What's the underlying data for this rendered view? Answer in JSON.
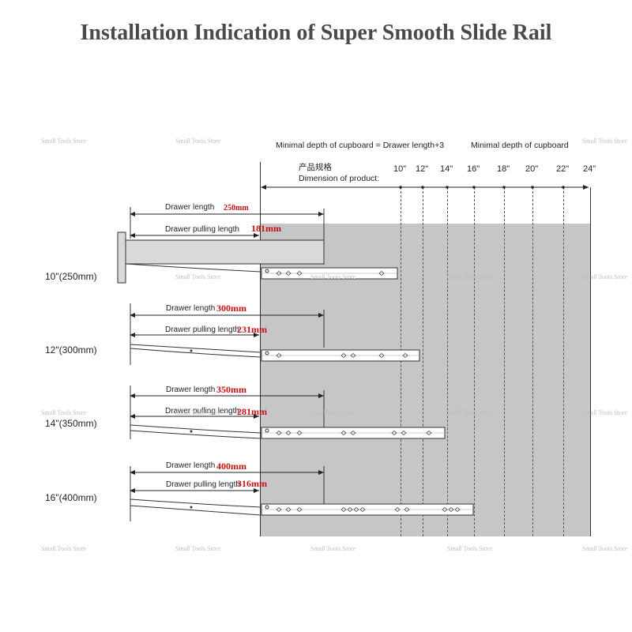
{
  "title": "Installation Indication of Super Smooth Slide Rail",
  "header": {
    "minimal_depth_formula": "Minimal depth of cupboard = Drawer length+3",
    "minimal_depth": "Minimal depth of cupboard",
    "product_cn": "产品规格",
    "product_en": "Dimension of product:",
    "sizes": [
      "10\"",
      "12\"",
      "14\"",
      "16\"",
      "18\"",
      "20\"",
      "22\"",
      "24\""
    ]
  },
  "rows": [
    {
      "label": "10\"(250mm)",
      "drawer_length_label": "Drawer length",
      "drawer_length_value": "250mm",
      "pulling_label": "Drawer pulling length",
      "pulling_value": "181mm"
    },
    {
      "label": "12\"(300mm)",
      "drawer_length_label": "Drawer length",
      "drawer_length_value": "300mm",
      "pulling_label": "Drawer pulling length",
      "pulling_value": "231mm"
    },
    {
      "label": "14\"(350mm)",
      "drawer_length_label": "Drawer length",
      "drawer_length_value": "350mm",
      "pulling_label": "Drawer pulling length",
      "pulling_value": "281mm"
    },
    {
      "label": "16\"(400mm)",
      "drawer_length_label": "Drawer length",
      "drawer_length_value": "400mm",
      "pulling_label": "Drawer pulling length",
      "pulling_value": "316mm"
    }
  ],
  "watermark": "Small Tools Store",
  "colors": {
    "title": "#4a4a4a",
    "accent_red": "#c41010",
    "cabinet_gray": "#c6c6c6"
  }
}
